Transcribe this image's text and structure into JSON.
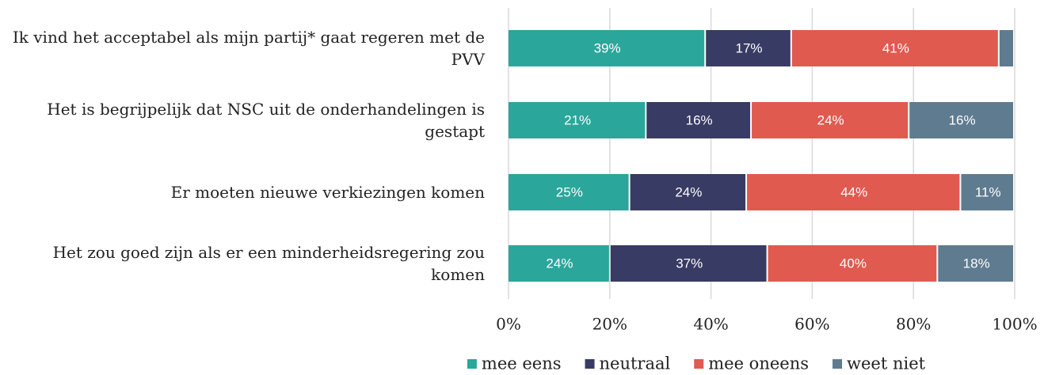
{
  "chart_data": {
    "type": "bar",
    "orientation": "horizontal",
    "stack": "percent",
    "categories": [
      "Ik vind het acceptabel als mijn partij* gaat regeren met de PVV",
      "Het is begrijpelijk dat NSC uit de onderhandelingen is gestapt",
      "Er moeten nieuwe verkiezingen komen",
      "Het zou goed zijn als er een minderheidsregering zou komen"
    ],
    "series": [
      {
        "name": "mee eens",
        "color": "#2ba69b",
        "values": [
          39,
          21,
          25,
          24
        ],
        "value_labels": [
          "39%",
          "21%",
          "25%",
          "24%"
        ]
      },
      {
        "name": "neutraal",
        "color": "#383b63",
        "values": [
          17,
          16,
          24,
          37
        ],
        "value_labels": [
          "17%",
          "16%",
          "24%",
          "37%"
        ]
      },
      {
        "name": "mee oneens",
        "color": "#e05a50",
        "values": [
          41,
          24,
          44,
          40
        ],
        "value_labels": [
          "41%",
          "24%",
          "44%",
          "40%"
        ]
      },
      {
        "name": "weet niet",
        "color": "#5f7b8f",
        "values": [
          3,
          16,
          11,
          18
        ],
        "value_labels": [
          null,
          "16%",
          "11%",
          "18%"
        ]
      }
    ],
    "xlim": [
      0,
      100
    ],
    "xticks": [
      {
        "value": 0,
        "label": "0%"
      },
      {
        "value": 20,
        "label": "20%"
      },
      {
        "value": 40,
        "label": "40%"
      },
      {
        "value": 60,
        "label": "60%"
      },
      {
        "value": 80,
        "label": "80%"
      },
      {
        "value": 100,
        "label": "100%"
      }
    ],
    "grid": true,
    "legend": "bottom"
  }
}
